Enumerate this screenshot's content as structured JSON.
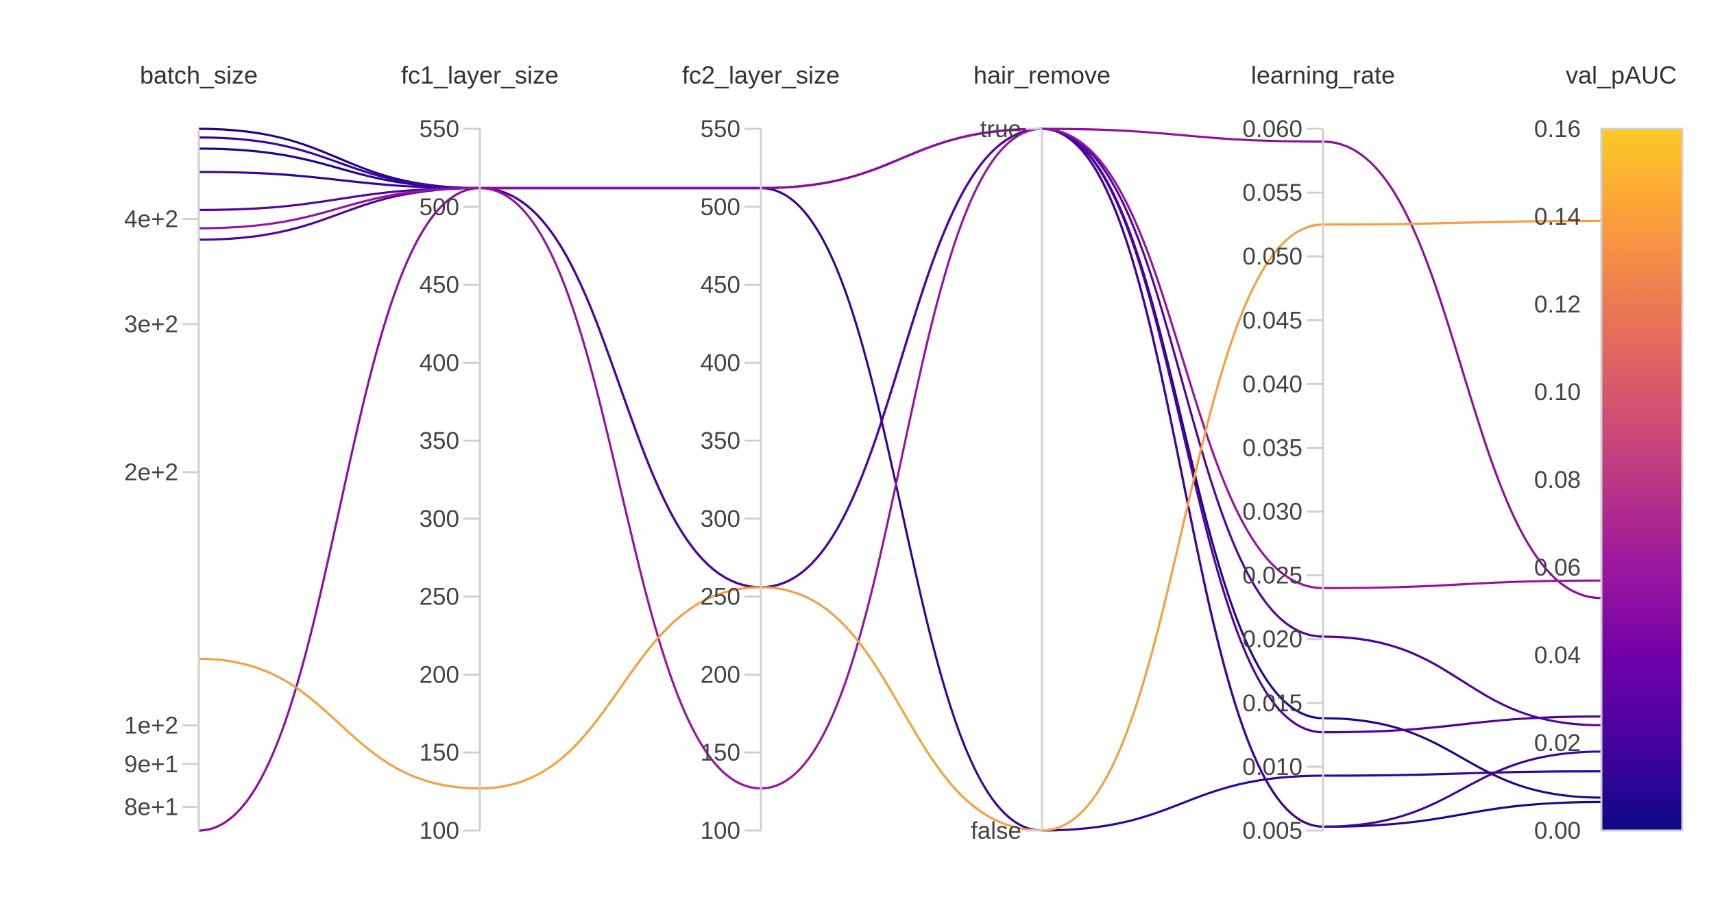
{
  "chart_data": {
    "type": "parallel_coordinates",
    "colorscale": [
      "#0d0887",
      "#46039f",
      "#7201a8",
      "#9c179e",
      "#bd3786",
      "#d8576b",
      "#ed7953",
      "#fb9f3a",
      "#fdca26"
    ],
    "color_by": "val_pAUC",
    "axes": [
      {
        "key": "batch_size",
        "label": "batch_size",
        "scale": "log",
        "range": [
          75,
          512
        ],
        "ticks": [
          {
            "value": 80,
            "label": "8e+1"
          },
          {
            "value": 90,
            "label": "9e+1"
          },
          {
            "value": 100,
            "label": "1e+2"
          },
          {
            "value": 200,
            "label": "2e+2"
          },
          {
            "value": 300,
            "label": "3e+2"
          },
          {
            "value": 400,
            "label": "4e+2"
          }
        ]
      },
      {
        "key": "fc1_layer_size",
        "label": "fc1_layer_size",
        "scale": "linear",
        "range": [
          100,
          550
        ],
        "ticks": [
          {
            "value": 100,
            "label": "100"
          },
          {
            "value": 150,
            "label": "150"
          },
          {
            "value": 200,
            "label": "200"
          },
          {
            "value": 250,
            "label": "250"
          },
          {
            "value": 300,
            "label": "300"
          },
          {
            "value": 350,
            "label": "350"
          },
          {
            "value": 400,
            "label": "400"
          },
          {
            "value": 450,
            "label": "450"
          },
          {
            "value": 500,
            "label": "500"
          },
          {
            "value": 550,
            "label": "550"
          }
        ]
      },
      {
        "key": "fc2_layer_size",
        "label": "fc2_layer_size",
        "scale": "linear",
        "range": [
          100,
          550
        ],
        "ticks": [
          {
            "value": 100,
            "label": "100"
          },
          {
            "value": 150,
            "label": "150"
          },
          {
            "value": 200,
            "label": "200"
          },
          {
            "value": 250,
            "label": "250"
          },
          {
            "value": 300,
            "label": "300"
          },
          {
            "value": 350,
            "label": "350"
          },
          {
            "value": 400,
            "label": "400"
          },
          {
            "value": 450,
            "label": "450"
          },
          {
            "value": 500,
            "label": "500"
          },
          {
            "value": 550,
            "label": "550"
          }
        ]
      },
      {
        "key": "hair_remove",
        "label": "hair_remove",
        "scale": "categorical",
        "range": [
          0,
          1
        ],
        "ticks": [
          {
            "value": 0,
            "label": "false"
          },
          {
            "value": 1,
            "label": "true"
          }
        ]
      },
      {
        "key": "learning_rate",
        "label": "learning_rate",
        "scale": "linear",
        "range": [
          0.005,
          0.06
        ],
        "ticks": [
          {
            "value": 0.005,
            "label": "0.005"
          },
          {
            "value": 0.01,
            "label": "0.010"
          },
          {
            "value": 0.015,
            "label": "0.015"
          },
          {
            "value": 0.02,
            "label": "0.020"
          },
          {
            "value": 0.025,
            "label": "0.025"
          },
          {
            "value": 0.03,
            "label": "0.030"
          },
          {
            "value": 0.035,
            "label": "0.035"
          },
          {
            "value": 0.04,
            "label": "0.040"
          },
          {
            "value": 0.045,
            "label": "0.045"
          },
          {
            "value": 0.05,
            "label": "0.050"
          },
          {
            "value": 0.055,
            "label": "0.055"
          },
          {
            "value": 0.06,
            "label": "0.060"
          }
        ]
      },
      {
        "key": "val_pAUC",
        "label": "val_pAUC",
        "scale": "linear",
        "range": [
          0,
          0.16
        ],
        "ticks": [
          {
            "value": 0,
            "label": "0.00"
          },
          {
            "value": 0.02,
            "label": "0.02"
          },
          {
            "value": 0.04,
            "label": "0.04"
          },
          {
            "value": 0.06,
            "label": "0.06"
          },
          {
            "value": 0.08,
            "label": "0.08"
          },
          {
            "value": 0.1,
            "label": "0.10"
          },
          {
            "value": 0.12,
            "label": "0.12"
          },
          {
            "value": 0.14,
            "label": "0.14"
          },
          {
            "value": 0.16,
            "label": "0.16"
          }
        ]
      }
    ],
    "runs": [
      {
        "batch_size": 512,
        "fc1_layer_size": 512,
        "fc2_layer_size": 512,
        "hair_remove": 1,
        "learning_rate": 0.0053,
        "val_pAUC": 0.0065
      },
      {
        "batch_size": 500,
        "fc1_layer_size": 512,
        "fc2_layer_size": 512,
        "hair_remove": 1,
        "learning_rate": 0.0053,
        "val_pAUC": 0.018
      },
      {
        "batch_size": 485,
        "fc1_layer_size": 512,
        "fc2_layer_size": 256,
        "hair_remove": 1,
        "learning_rate": 0.0138,
        "val_pAUC": 0.0075
      },
      {
        "batch_size": 455,
        "fc1_layer_size": 512,
        "fc2_layer_size": 512,
        "hair_remove": 0,
        "learning_rate": 0.0093,
        "val_pAUC": 0.0135
      },
      {
        "batch_size": 410,
        "fc1_layer_size": 512,
        "fc2_layer_size": 256,
        "hair_remove": 1,
        "learning_rate": 0.0202,
        "val_pAUC": 0.024
      },
      {
        "batch_size": 390,
        "fc1_layer_size": 512,
        "fc2_layer_size": 127,
        "hair_remove": 1,
        "learning_rate": 0.024,
        "val_pAUC": 0.057
      },
      {
        "batch_size": 378,
        "fc1_layer_size": 512,
        "fc2_layer_size": 512,
        "hair_remove": 1,
        "learning_rate": 0.0127,
        "val_pAUC": 0.026
      },
      {
        "batch_size": 120,
        "fc1_layer_size": 127,
        "fc2_layer_size": 256,
        "hair_remove": 0,
        "learning_rate": 0.0525,
        "val_pAUC": 0.139
      },
      {
        "batch_size": 75,
        "fc1_layer_size": 512,
        "fc2_layer_size": 512,
        "hair_remove": 1,
        "learning_rate": 0.059,
        "val_pAUC": 0.053
      }
    ]
  }
}
